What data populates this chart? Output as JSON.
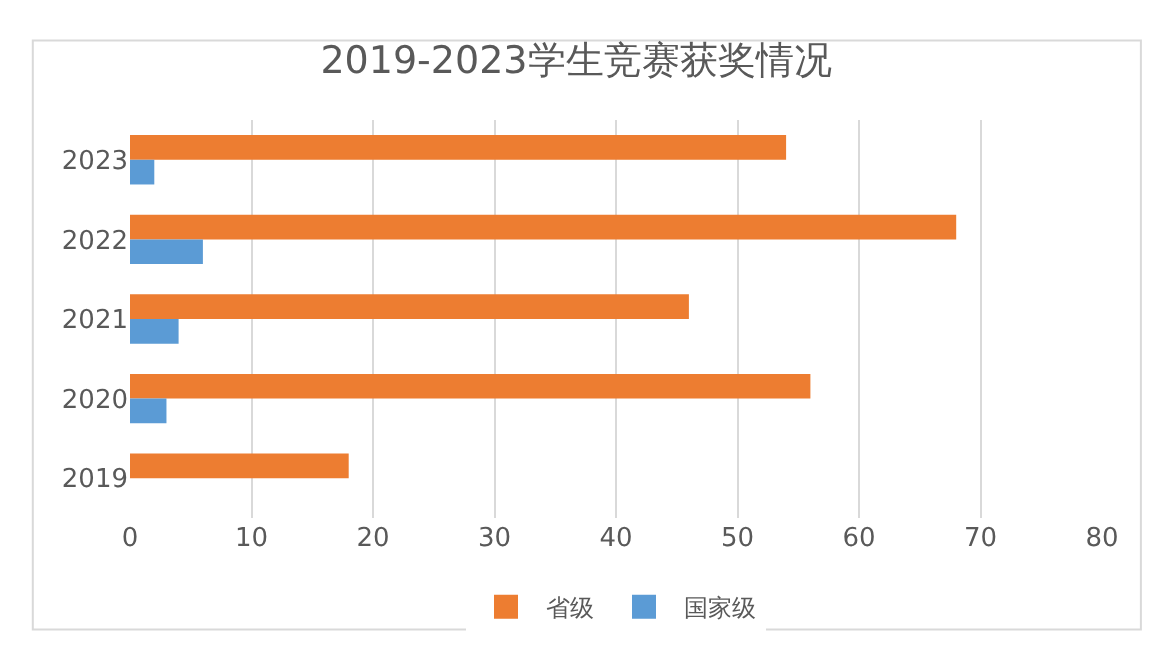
{
  "chart_data": {
    "type": "bar",
    "orientation": "horizontal",
    "title": "2019-2023学生竞赛获奖情况",
    "categories": [
      "2023",
      "2022",
      "2021",
      "2020",
      "2019"
    ],
    "series": [
      {
        "name": "省级",
        "color": "#ed7d31",
        "values": [
          54,
          68,
          46,
          56,
          18
        ]
      },
      {
        "name": "国家级",
        "color": "#5b9bd5",
        "values": [
          2,
          6,
          4,
          3,
          0
        ]
      }
    ],
    "xlim": [
      0,
      80
    ],
    "xticks": [
      0,
      10,
      20,
      30,
      40,
      50,
      60,
      70,
      80
    ],
    "grid": "x",
    "legend": "bottom"
  }
}
